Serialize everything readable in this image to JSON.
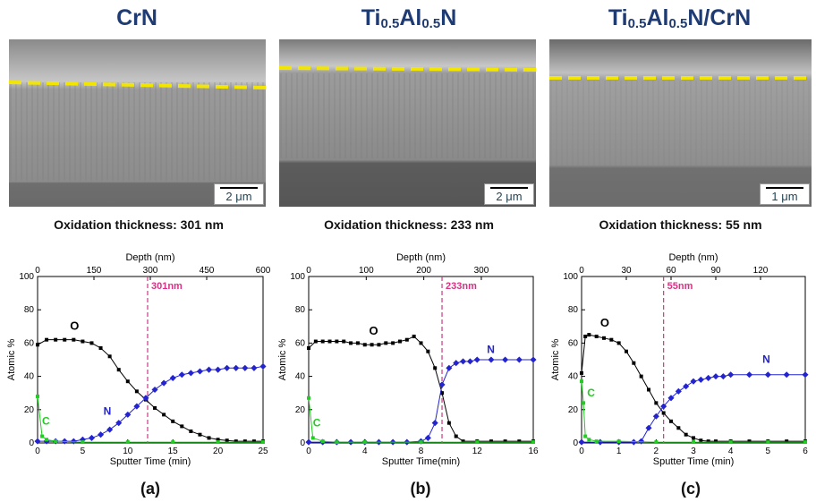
{
  "colors": {
    "title": "#1f3b73",
    "oxygen": "#000000",
    "nitrogen": "#2323d0",
    "carbon": "#22cc22",
    "marker_line": "#d63384",
    "dash": "#f2e600"
  },
  "panels": [
    {
      "title_main": "CrN",
      "title_sub_parts": [],
      "scale_bar": "2 μm",
      "oxidation_text": "Oxidation thickness: 301 nm",
      "panel_label": "(a)"
    },
    {
      "title_main": "Ti",
      "title_sub_parts": [
        "0.5",
        "Al",
        "0.5",
        "N"
      ],
      "scale_bar": "2 μm",
      "oxidation_text": "Oxidation thickness: 233 nm",
      "panel_label": "(b)"
    },
    {
      "title_main": "Ti",
      "title_sub_parts": [
        "0.5",
        "Al",
        "0.5",
        "N/CrN"
      ],
      "scale_bar": "1 μm",
      "oxidation_text": "Oxidation thickness: 55 nm",
      "panel_label": "(c)"
    }
  ],
  "chart_data": [
    {
      "type": "line",
      "xlabel": "Sputter Time (min)",
      "ylabel": "Atomic %",
      "top_xlabel": "Depth (nm)",
      "xlim": [
        0,
        25
      ],
      "ylim": [
        0,
        100
      ],
      "xticks": [
        0,
        5,
        10,
        15,
        20,
        25
      ],
      "yticks": [
        0,
        20,
        40,
        60,
        80,
        100
      ],
      "top_ticks": [
        {
          "x": 0,
          "label": "0"
        },
        {
          "x": 6.25,
          "label": "150"
        },
        {
          "x": 12.5,
          "label": "300"
        },
        {
          "x": 18.75,
          "label": "450"
        },
        {
          "x": 25,
          "label": "600"
        }
      ],
      "marker": {
        "x": 12.2,
        "label": "301nm"
      },
      "series_labels": [
        {
          "name": "O",
          "x": 3.6,
          "y": 68
        },
        {
          "name": "N",
          "x": 7.3,
          "y": 17
        },
        {
          "name": "C",
          "x": 0.5,
          "y": 11
        }
      ],
      "series": [
        {
          "name": "O",
          "x": [
            0,
            1,
            2,
            3,
            4,
            5,
            6,
            7,
            8,
            9,
            10,
            11,
            12,
            13,
            14,
            15,
            16,
            17,
            18,
            19,
            20,
            21,
            22,
            23,
            24,
            25
          ],
          "y": [
            59,
            62,
            62,
            62,
            62,
            61,
            60,
            57,
            52,
            44,
            37,
            31,
            26,
            21,
            17,
            13,
            10,
            7,
            5,
            3,
            2,
            1.5,
            1,
            1,
            1,
            1
          ]
        },
        {
          "name": "N",
          "x": [
            0,
            1,
            2,
            3,
            4,
            5,
            6,
            7,
            8,
            9,
            10,
            11,
            12,
            13,
            14,
            15,
            16,
            17,
            18,
            19,
            20,
            21,
            22,
            23,
            24,
            25
          ],
          "y": [
            1,
            1,
            1,
            1,
            1,
            2,
            3,
            5,
            8,
            12,
            17,
            22,
            27,
            32,
            36,
            39,
            41,
            42,
            43,
            44,
            44,
            45,
            45,
            45,
            45,
            46
          ]
        },
        {
          "name": "C",
          "x": [
            0,
            0.5,
            1,
            2,
            5,
            10,
            15,
            20,
            25
          ],
          "y": [
            28,
            4,
            2,
            1,
            0.5,
            0.5,
            0.5,
            0.5,
            0.5
          ]
        }
      ]
    },
    {
      "type": "line",
      "xlabel": "Sputter Time(min)",
      "ylabel": "Atomic %",
      "top_xlabel": "Depth (nm)",
      "xlim": [
        0,
        16
      ],
      "ylim": [
        0,
        100
      ],
      "xticks": [
        0,
        4,
        8,
        12,
        16
      ],
      "yticks": [
        0,
        20,
        40,
        60,
        80,
        100
      ],
      "top_ticks": [
        {
          "x": 0,
          "label": "0"
        },
        {
          "x": 4.1,
          "label": "100"
        },
        {
          "x": 8.2,
          "label": "200"
        },
        {
          "x": 12.3,
          "label": "300"
        }
      ],
      "marker": {
        "x": 9.5,
        "label": "233nm"
      },
      "series_labels": [
        {
          "name": "O",
          "x": 4.3,
          "y": 65
        },
        {
          "name": "N",
          "x": 12.7,
          "y": 54
        },
        {
          "name": "C",
          "x": 0.3,
          "y": 10
        }
      ],
      "series": [
        {
          "name": "O",
          "x": [
            0,
            0.5,
            1,
            1.5,
            2,
            2.5,
            3,
            3.5,
            4,
            4.5,
            5,
            5.5,
            6,
            6.5,
            7,
            7.5,
            8,
            8.5,
            9,
            9.5,
            10,
            10.5,
            11,
            12,
            13,
            14,
            15,
            16
          ],
          "y": [
            57,
            61,
            61,
            61,
            61,
            61,
            60,
            60,
            59,
            59,
            59,
            60,
            60,
            61,
            62,
            64,
            60,
            55,
            45,
            30,
            12,
            4,
            1,
            1,
            1,
            1,
            1,
            1
          ]
        },
        {
          "name": "N",
          "x": [
            0,
            1,
            2,
            3,
            4,
            5,
            6,
            7,
            8,
            8.5,
            9,
            9.5,
            10,
            10.5,
            11,
            11.5,
            12,
            13,
            14,
            15,
            16
          ],
          "y": [
            0.5,
            0.5,
            0.5,
            0.5,
            0.5,
            0.5,
            0.5,
            0.5,
            1,
            3,
            12,
            35,
            45,
            48,
            49,
            49,
            50,
            50,
            50,
            50,
            50
          ]
        },
        {
          "name": "C",
          "x": [
            0,
            0.3,
            1,
            2,
            4,
            8,
            12,
            16
          ],
          "y": [
            27,
            3,
            1,
            0.5,
            0.5,
            0.5,
            0.5,
            0.5
          ]
        }
      ]
    },
    {
      "type": "line",
      "xlabel": "Sputter Time (min)",
      "ylabel": "Atomic %",
      "top_xlabel": "Depth (nm)",
      "xlim": [
        0,
        6
      ],
      "ylim": [
        0,
        100
      ],
      "xticks": [
        0,
        1,
        2,
        3,
        4,
        5,
        6
      ],
      "yticks": [
        0,
        20,
        40,
        60,
        80,
        100
      ],
      "top_ticks": [
        {
          "x": 0,
          "label": "0"
        },
        {
          "x": 1.2,
          "label": "30"
        },
        {
          "x": 2.4,
          "label": "60"
        },
        {
          "x": 3.6,
          "label": "90"
        },
        {
          "x": 4.8,
          "label": "120"
        }
      ],
      "marker": {
        "x": 2.2,
        "label": "55nm"
      },
      "series_labels": [
        {
          "name": "O",
          "x": 0.5,
          "y": 70
        },
        {
          "name": "N",
          "x": 4.85,
          "y": 48
        },
        {
          "name": "C",
          "x": 0.15,
          "y": 28
        }
      ],
      "series": [
        {
          "name": "O",
          "x": [
            0,
            0.1,
            0.2,
            0.4,
            0.6,
            0.8,
            1,
            1.2,
            1.4,
            1.6,
            1.8,
            2,
            2.2,
            2.4,
            2.6,
            2.8,
            3,
            3.2,
            3.4,
            3.6,
            4,
            4.5,
            5,
            5.5,
            6
          ],
          "y": [
            42,
            64,
            65,
            64,
            63,
            62,
            60,
            55,
            48,
            40,
            32,
            24,
            18,
            13,
            9,
            5,
            3,
            1.5,
            1,
            1,
            1,
            1,
            1,
            1,
            1
          ]
        },
        {
          "name": "N",
          "x": [
            0,
            0.5,
            1,
            1.4,
            1.6,
            1.8,
            2,
            2.2,
            2.4,
            2.6,
            2.8,
            3,
            3.2,
            3.4,
            3.6,
            3.8,
            4,
            4.5,
            5,
            5.5,
            6
          ],
          "y": [
            0.5,
            0.5,
            0.5,
            0.5,
            1,
            9,
            16,
            22,
            27,
            31,
            34,
            37,
            38,
            39,
            40,
            40,
            41,
            41,
            41,
            41,
            41
          ]
        },
        {
          "name": "C",
          "x": [
            0,
            0.05,
            0.1,
            0.2,
            0.4,
            1,
            2,
            3,
            4,
            5,
            6
          ],
          "y": [
            37,
            24,
            4,
            2,
            1,
            1,
            0.5,
            0.5,
            0.5,
            0.5,
            0.5
          ]
        }
      ]
    }
  ]
}
